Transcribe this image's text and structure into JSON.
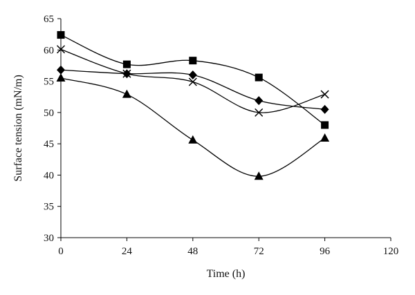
{
  "chart_data": {
    "type": "line",
    "title": "",
    "xlabel": "Time (h)",
    "ylabel": "Surface tension (mN/m)",
    "xlim": [
      0,
      120
    ],
    "ylim": [
      30,
      65
    ],
    "xticks": [
      0,
      24,
      48,
      72,
      96,
      120
    ],
    "yticks": [
      30,
      35,
      40,
      45,
      50,
      55,
      60,
      65
    ],
    "grid": false,
    "legend": "none",
    "line_color": "#000000",
    "series": [
      {
        "marker": "square",
        "x": [
          0,
          24,
          48,
          72,
          96
        ],
        "y": [
          62.4,
          57.7,
          58.3,
          55.6,
          48.0
        ]
      },
      {
        "marker": "cross",
        "x": [
          0,
          24,
          48,
          72,
          96
        ],
        "y": [
          60.1,
          56.2,
          54.9,
          50.0,
          52.9
        ]
      },
      {
        "marker": "diamond",
        "x": [
          0,
          24,
          48,
          72,
          96
        ],
        "y": [
          56.8,
          56.2,
          56.0,
          51.9,
          50.5
        ]
      },
      {
        "marker": "triangle",
        "x": [
          0,
          24,
          48,
          72,
          96
        ],
        "y": [
          55.5,
          52.9,
          45.6,
          39.8,
          45.9
        ]
      }
    ]
  }
}
